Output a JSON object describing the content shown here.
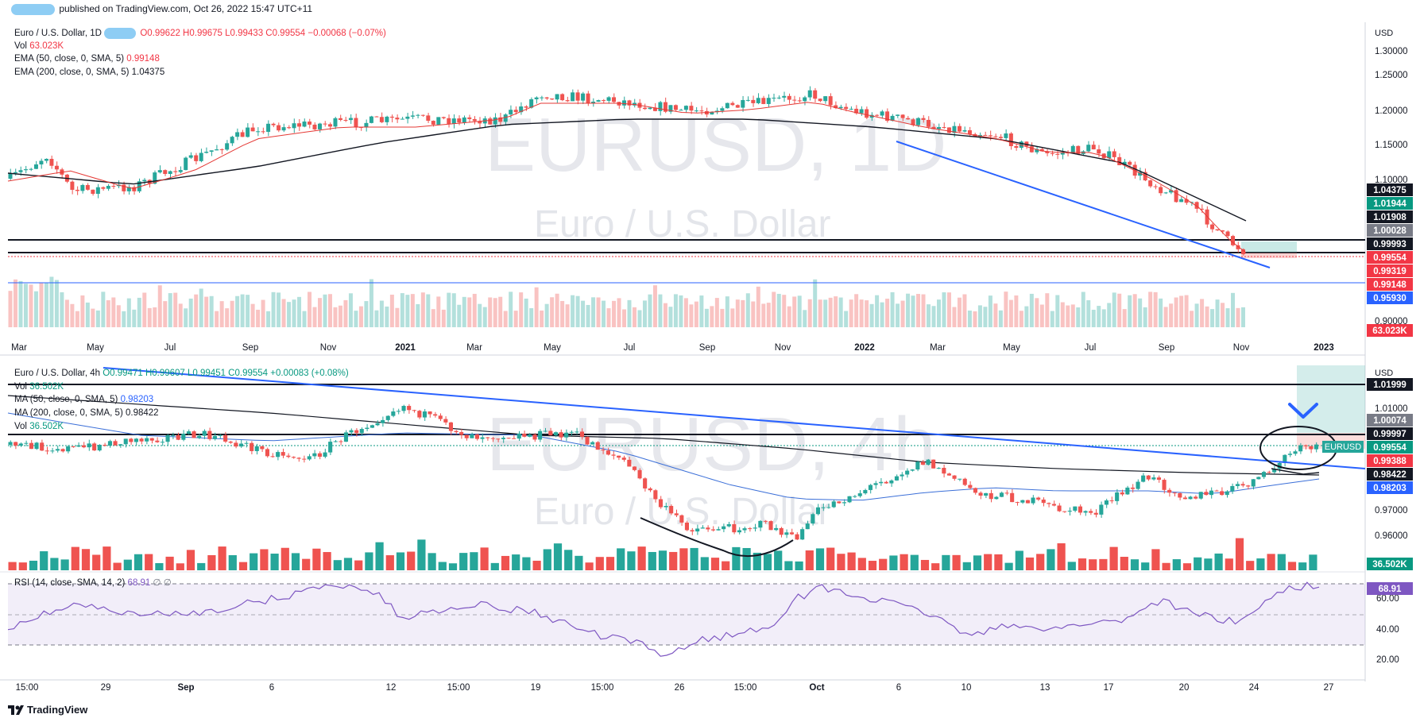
{
  "header": {
    "published": "published on TradingView.com, Oct 26, 2022 15:47 UTC+11"
  },
  "footer": {
    "brand": "TradingView"
  },
  "colors": {
    "up": "#26a69a",
    "down": "#ef5350",
    "trend": "#2962ff",
    "ema50": "#e53935",
    "ema200": "#131722",
    "ma50": "#3b6fd8",
    "rsi": "#7e57c2"
  },
  "panel1": {
    "legend": {
      "symbol": "Euro / U.S. Dollar, 1D",
      "ohlc": "O0.99622 H0.99675 L0.99433 C0.99554 −0.00068 (−0.07%)",
      "vol_label": "Vol",
      "vol_value": "63.023K",
      "ema50_label": "EMA (50, close, 0, SMA, 5)",
      "ema50_value": "0.99148",
      "ema200_label": "EMA (200, close, 0, SMA, 5)",
      "ema200_value": "1.04375"
    },
    "watermark": {
      "symbol": "EURUSD, 1D",
      "name": "Euro / U.S. Dollar"
    },
    "currency": "USD",
    "price_ticks": [
      "1.30000",
      "1.25000",
      "1.20000",
      "1.15000",
      "1.10000",
      "0.90000"
    ],
    "price_labels": [
      {
        "text": "1.04375",
        "kind": "black"
      },
      {
        "text": "1.01944",
        "kind": "green"
      },
      {
        "text": "1.01908",
        "kind": "black"
      },
      {
        "text": "1.00028",
        "kind": "gray"
      },
      {
        "text": "0.99993",
        "kind": "black"
      },
      {
        "text": "0.99554",
        "kind": "red"
      },
      {
        "text": "0.99319",
        "kind": "red"
      },
      {
        "text": "0.99148",
        "kind": "red"
      },
      {
        "text": "0.95930",
        "kind": "blue"
      },
      {
        "text": "63.023K",
        "kind": "red"
      }
    ],
    "time_labels": [
      "Mar",
      "May",
      "Jul",
      "Sep",
      "Nov",
      "2021",
      "Mar",
      "May",
      "Jul",
      "Sep",
      "Nov",
      "2022",
      "Mar",
      "May",
      "Jul",
      "Sep",
      "Nov",
      "2023"
    ]
  },
  "panel2": {
    "legend": {
      "symbol": "Euro / U.S. Dollar, 4h",
      "ohlc": "O0.99471 H0.99607 L0.99451 C0.99554 +0.00083 (+0.08%)",
      "vol_label": "Vol",
      "vol_value": "36.502K",
      "ma50_label": "MA (50, close, 0, SMA, 5)",
      "ma50_value": "0.98203",
      "ma200_label": "MA (200, close, 0, SMA, 5)",
      "ma200_value": "0.98422",
      "vol2_label": "Vol",
      "vol2_value": "36.502K"
    },
    "watermark": {
      "symbol": "EURUSD, 4h",
      "name": "Euro / U.S. Dollar"
    },
    "currency": "USD",
    "price_ticks": [
      "1.01000",
      "0.97000",
      "0.96000"
    ],
    "price_labels": [
      {
        "text": "1.01999",
        "kind": "black"
      },
      {
        "text": "1.00074",
        "kind": "gray"
      },
      {
        "text": "0.99997",
        "kind": "black"
      },
      {
        "text": "0.99554",
        "kind": "green"
      },
      {
        "text": "0.99388",
        "kind": "red"
      },
      {
        "text": "0.98422",
        "kind": "black"
      },
      {
        "text": "0.98203",
        "kind": "blue"
      },
      {
        "text": "36.502K",
        "kind": "green"
      }
    ],
    "symbol_tag": "EURUSD"
  },
  "rsi": {
    "label": "RSI (14, close, SMA, 14, 2)",
    "value_text": "68.91",
    "extra": "∅ ∅",
    "ticks": [
      "60.00",
      "40.00",
      "20.00"
    ],
    "value_label": "68.91"
  },
  "bottom_time_labels": [
    "15:00",
    "29",
    "Sep",
    "6",
    "12",
    "15:00",
    "19",
    "15:00",
    "26",
    "15:00",
    "Oct",
    "6",
    "10",
    "13",
    "17",
    "20",
    "24",
    "27"
  ]
}
